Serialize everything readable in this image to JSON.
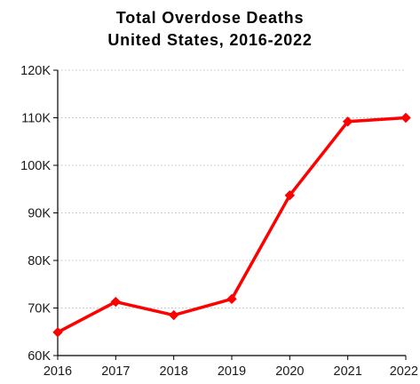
{
  "chart_data": {
    "type": "line",
    "title": "Total Overdose Deaths",
    "subtitle": "United States, 2016-2022",
    "xlabel": "",
    "ylabel": "",
    "categories": [
      "2016",
      "2017",
      "2018",
      "2019",
      "2020",
      "2021",
      "2022"
    ],
    "series": [
      {
        "values": [
          64900,
          71300,
          68500,
          71900,
          93700,
          109200,
          110000
        ],
        "color": "#ff0000",
        "marker": "diamond"
      }
    ],
    "ylim": [
      60000,
      120000
    ],
    "y_ticks": [
      {
        "value": 60000,
        "label": "60K"
      },
      {
        "value": 70000,
        "label": "70K"
      },
      {
        "value": 80000,
        "label": "80K"
      },
      {
        "value": 90000,
        "label": "90K"
      },
      {
        "value": 100000,
        "label": "100K"
      },
      {
        "value": 110000,
        "label": "110K"
      },
      {
        "value": 120000,
        "label": "120K"
      }
    ],
    "grid": true,
    "grid_style": "dotted horizontal",
    "legend": "none"
  }
}
